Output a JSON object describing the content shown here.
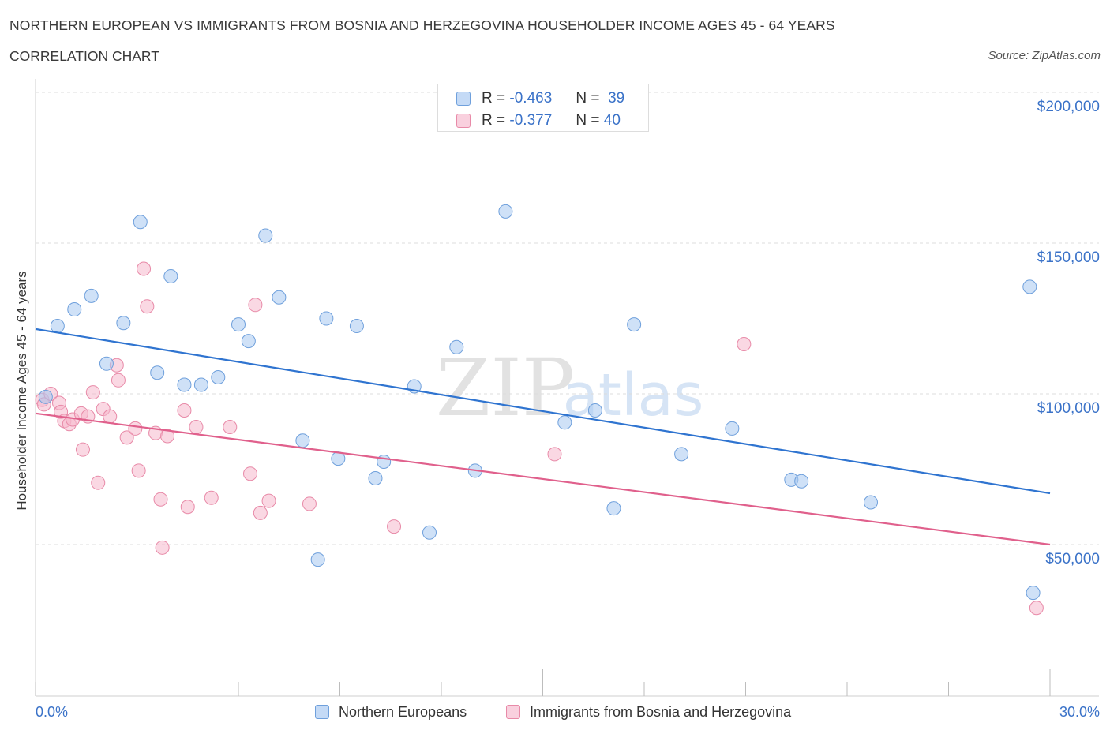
{
  "header": {
    "title": "NORTHERN EUROPEAN VS IMMIGRANTS FROM BOSNIA AND HERZEGOVINA HOUSEHOLDER INCOME AGES 45 - 64 YEARS",
    "subtitle": "CORRELATION CHART",
    "source": "Source: ZipAtlas.com"
  },
  "watermark": {
    "zip": "ZIP",
    "atlas": "atlas"
  },
  "legend_top": [
    {
      "r_label": "R =",
      "r_value": "-0.463",
      "n_label": "N =",
      "n_value": "39",
      "color": "#a8c8f0"
    },
    {
      "r_label": "R =",
      "r_value": "-0.377",
      "n_label": "N =",
      "n_value": "40",
      "color": "#f5b8cc"
    }
  ],
  "chart_data": {
    "type": "scatter",
    "title": "NORTHERN EUROPEAN VS IMMIGRANTS FROM BOSNIA AND HERZEGOVINA HOUSEHOLDER INCOME AGES 45 - 64 YEARS",
    "subtitle": "CORRELATION CHART",
    "xlabel": "",
    "ylabel": "Householder Income Ages 45 - 64 years",
    "xlim": [
      0,
      30
    ],
    "ylim": [
      5000,
      210000
    ],
    "x_tick_labels": [
      "0.0%",
      "30.0%"
    ],
    "y_ticks": [
      50000,
      100000,
      150000,
      200000
    ],
    "y_tick_labels": [
      "$50,000",
      "$100,000",
      "$150,000",
      "$200,000"
    ],
    "grid": true,
    "legend_position": "bottom",
    "series": [
      {
        "name": "Northern Europeans",
        "color": "#a8c8f0",
        "stroke": "#6fa0dc",
        "line_color": "#2f74d0",
        "r": -0.463,
        "n": 39,
        "trend": {
          "x": [
            0,
            30
          ],
          "y": [
            121500,
            67000
          ]
        },
        "points": [
          {
            "x": 0.3,
            "y": 99000
          },
          {
            "x": 0.65,
            "y": 122500
          },
          {
            "x": 1.15,
            "y": 128000
          },
          {
            "x": 1.65,
            "y": 132500
          },
          {
            "x": 2.1,
            "y": 110000
          },
          {
            "x": 2.6,
            "y": 123500
          },
          {
            "x": 3.1,
            "y": 157000
          },
          {
            "x": 3.6,
            "y": 107000
          },
          {
            "x": 4.0,
            "y": 139000
          },
          {
            "x": 4.4,
            "y": 103000
          },
          {
            "x": 4.9,
            "y": 103000
          },
          {
            "x": 5.4,
            "y": 105500
          },
          {
            "x": 6.0,
            "y": 123000
          },
          {
            "x": 6.3,
            "y": 117500
          },
          {
            "x": 6.8,
            "y": 152500
          },
          {
            "x": 7.2,
            "y": 132000
          },
          {
            "x": 7.9,
            "y": 84500
          },
          {
            "x": 8.6,
            "y": 125000
          },
          {
            "x": 8.95,
            "y": 78500
          },
          {
            "x": 9.5,
            "y": 122500
          },
          {
            "x": 10.05,
            "y": 72000
          },
          {
            "x": 10.3,
            "y": 77500
          },
          {
            "x": 11.2,
            "y": 102500
          },
          {
            "x": 11.65,
            "y": 54000
          },
          {
            "x": 8.35,
            "y": 45000
          },
          {
            "x": 12.45,
            "y": 115500
          },
          {
            "x": 13.0,
            "y": 74500
          },
          {
            "x": 13.9,
            "y": 160500
          },
          {
            "x": 15.65,
            "y": 90500
          },
          {
            "x": 16.55,
            "y": 94500
          },
          {
            "x": 17.1,
            "y": 62000
          },
          {
            "x": 17.7,
            "y": 123000
          },
          {
            "x": 19.1,
            "y": 80000
          },
          {
            "x": 20.6,
            "y": 88500
          },
          {
            "x": 22.35,
            "y": 71500
          },
          {
            "x": 22.65,
            "y": 71000
          },
          {
            "x": 24.7,
            "y": 64000
          },
          {
            "x": 29.4,
            "y": 135500
          },
          {
            "x": 29.5,
            "y": 34000
          }
        ]
      },
      {
        "name": "Immigrants from Bosnia and Herzegovina",
        "color": "#f5b8cc",
        "stroke": "#e88aa8",
        "line_color": "#e0608c",
        "r": -0.377,
        "n": 40,
        "trend": {
          "x": [
            0,
            30
          ],
          "y": [
            93500,
            50000
          ]
        },
        "points": [
          {
            "x": 0.2,
            "y": 98000
          },
          {
            "x": 0.25,
            "y": 96500
          },
          {
            "x": 0.45,
            "y": 100000
          },
          {
            "x": 0.7,
            "y": 97000
          },
          {
            "x": 0.75,
            "y": 94000
          },
          {
            "x": 0.85,
            "y": 91000
          },
          {
            "x": 1.0,
            "y": 90000
          },
          {
            "x": 1.1,
            "y": 91500
          },
          {
            "x": 1.35,
            "y": 93500
          },
          {
            "x": 1.4,
            "y": 81500
          },
          {
            "x": 1.55,
            "y": 92500
          },
          {
            "x": 1.7,
            "y": 100500
          },
          {
            "x": 1.85,
            "y": 70500
          },
          {
            "x": 2.0,
            "y": 95000
          },
          {
            "x": 2.2,
            "y": 92500
          },
          {
            "x": 2.4,
            "y": 109500
          },
          {
            "x": 2.45,
            "y": 104500
          },
          {
            "x": 2.7,
            "y": 85500
          },
          {
            "x": 2.95,
            "y": 88500
          },
          {
            "x": 3.05,
            "y": 74500
          },
          {
            "x": 3.2,
            "y": 141500
          },
          {
            "x": 3.3,
            "y": 129000
          },
          {
            "x": 3.55,
            "y": 87000
          },
          {
            "x": 3.7,
            "y": 65000
          },
          {
            "x": 3.75,
            "y": 49000
          },
          {
            "x": 3.9,
            "y": 86000
          },
          {
            "x": 4.4,
            "y": 94500
          },
          {
            "x": 4.5,
            "y": 62500
          },
          {
            "x": 4.75,
            "y": 89000
          },
          {
            "x": 5.2,
            "y": 65500
          },
          {
            "x": 5.75,
            "y": 89000
          },
          {
            "x": 6.35,
            "y": 73500
          },
          {
            "x": 6.5,
            "y": 129500
          },
          {
            "x": 6.65,
            "y": 60500
          },
          {
            "x": 6.9,
            "y": 64500
          },
          {
            "x": 8.1,
            "y": 63500
          },
          {
            "x": 10.6,
            "y": 56000
          },
          {
            "x": 15.35,
            "y": 80000
          },
          {
            "x": 20.95,
            "y": 116500
          },
          {
            "x": 29.6,
            "y": 29000
          }
        ]
      }
    ]
  }
}
